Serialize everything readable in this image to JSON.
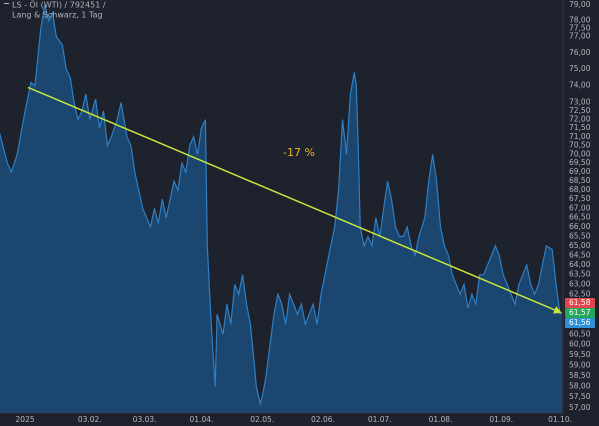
{
  "chart_data": {
    "type": "area",
    "title": "LS - Öl (WTI) / 792451 /",
    "subtitle": "Lang & Schwarz, 1 Tag",
    "annotation": "-17 %",
    "log_scale": true,
    "grid": false,
    "x": [
      -12,
      -8,
      -6,
      -3,
      1,
      4,
      6,
      9,
      11,
      13,
      15,
      17,
      20,
      22,
      24,
      26,
      28,
      30,
      32,
      34,
      37,
      39,
      41,
      43,
      45,
      48,
      50,
      53,
      55,
      57,
      59,
      61,
      63,
      65,
      67,
      69,
      71,
      73,
      75,
      77,
      79,
      81,
      83,
      85,
      87,
      89,
      91,
      93,
      94,
      96,
      98,
      99,
      102,
      104,
      106,
      108,
      110,
      112,
      114,
      116,
      118,
      119,
      121,
      122,
      124,
      126,
      128,
      130,
      132,
      134,
      136,
      138,
      140,
      142,
      144,
      146,
      148,
      150,
      152,
      155,
      157,
      159,
      161,
      163,
      165,
      167,
      169,
      170,
      171,
      172,
      174,
      176,
      178,
      180,
      182,
      184,
      186,
      188,
      190,
      192,
      194,
      196,
      198,
      200,
      202,
      205,
      207,
      209,
      211,
      213,
      215,
      217,
      219,
      221,
      223,
      225,
      227,
      229,
      231,
      233,
      235,
      237,
      239,
      241,
      243,
      245,
      247,
      249,
      251,
      253,
      255,
      257,
      259,
      261,
      263,
      265,
      267,
      270,
      272,
      274,
      275
    ],
    "series": [
      {
        "name": "LS - Öl (WTI)",
        "color": "#2f7fc4",
        "fill": "#1b4a78",
        "values": [
          71.2,
          69.5,
          69.0,
          70.0,
          72.5,
          74.2,
          74.0,
          77.5,
          79.0,
          78.0,
          78.5,
          77.0,
          76.5,
          75.0,
          74.5,
          73.0,
          72.0,
          72.5,
          73.5,
          72.0,
          73.2,
          71.5,
          72.5,
          70.5,
          71.0,
          72.0,
          73.0,
          71.0,
          70.5,
          69.0,
          68.0,
          67.0,
          66.5,
          66.0,
          67.0,
          66.2,
          67.5,
          66.5,
          67.5,
          68.5,
          68.0,
          69.5,
          69.0,
          70.5,
          71.0,
          70.0,
          71.5,
          72.0,
          65.0,
          61.0,
          58.0,
          61.5,
          60.5,
          62.0,
          61.0,
          63.0,
          62.5,
          63.5,
          62.0,
          61.0,
          59.0,
          58.0,
          57.2,
          57.5,
          58.5,
          60.0,
          61.5,
          62.5,
          62.0,
          61.0,
          62.5,
          62.0,
          61.5,
          62.0,
          61.0,
          61.5,
          62.0,
          61.0,
          62.5,
          64.0,
          65.0,
          66.0,
          68.0,
          72.0,
          70.0,
          73.5,
          74.8,
          74.0,
          70.5,
          66.0,
          65.0,
          65.5,
          65.0,
          66.5,
          65.5,
          67.0,
          68.5,
          67.5,
          66.0,
          65.5,
          65.5,
          66.0,
          65.0,
          64.5,
          65.5,
          66.5,
          68.5,
          70.0,
          68.5,
          66.0,
          65.0,
          64.5,
          63.5,
          63.0,
          62.5,
          63.0,
          61.8,
          62.5,
          62.0,
          63.5,
          63.5,
          64.0,
          64.5,
          65.0,
          64.5,
          63.5,
          63.0,
          62.5,
          62.0,
          63.0,
          63.5,
          64.0,
          63.0,
          62.5,
          63.0,
          64.0,
          65.0,
          64.8,
          63.0,
          61.5,
          61.57
        ]
      }
    ],
    "trend_line": {
      "x": [
        2.5,
        274
      ],
      "y": [
        73.9,
        61.6
      ],
      "color": "#c8e63c"
    },
    "price_labels": [
      {
        "value": 61.58,
        "label": "61,58",
        "color": "#e0474c"
      },
      {
        "value": 61.57,
        "label": "61,57",
        "color": "#26a65b"
      },
      {
        "value": 61.56,
        "label": "61,56",
        "color": "#2f8fd8"
      }
    ],
    "xlim": [
      -11.8,
      275.5
    ],
    "xticks": [
      {
        "value": 1,
        "label": "2025"
      },
      {
        "value": 34,
        "label": "03.02."
      },
      {
        "value": 62,
        "label": "03.03."
      },
      {
        "value": 91,
        "label": "01.04."
      },
      {
        "value": 122,
        "label": "02.05."
      },
      {
        "value": 153,
        "label": "02.06."
      },
      {
        "value": 182,
        "label": "01.07."
      },
      {
        "value": 213,
        "label": "01.08."
      },
      {
        "value": 244,
        "label": "01.09."
      },
      {
        "value": 274,
        "label": "01.10."
      }
    ],
    "ylim": [
      56.77,
      79.32
    ],
    "yticks": [
      {
        "value": 57,
        "label": "57,00"
      },
      {
        "value": 57.5,
        "label": "57,50"
      },
      {
        "value": 58,
        "label": "58,00"
      },
      {
        "value": 58.5,
        "label": "58,50"
      },
      {
        "value": 59,
        "label": "59,00"
      },
      {
        "value": 59.5,
        "label": "59,50"
      },
      {
        "value": 60,
        "label": "60,00"
      },
      {
        "value": 60.5,
        "label": "60,50"
      },
      {
        "value": 62.5,
        "label": "62,50"
      },
      {
        "value": 63,
        "label": "63,00"
      },
      {
        "value": 63.5,
        "label": "63,50"
      },
      {
        "value": 64,
        "label": "64,00"
      },
      {
        "value": 64.5,
        "label": "64,50"
      },
      {
        "value": 65,
        "label": "65,00"
      },
      {
        "value": 65.5,
        "label": "65,50"
      },
      {
        "value": 66,
        "label": "66,00"
      },
      {
        "value": 66.5,
        "label": "66,50"
      },
      {
        "value": 67,
        "label": "67,00"
      },
      {
        "value": 67.5,
        "label": "67,50"
      },
      {
        "value": 68,
        "label": "68,00"
      },
      {
        "value": 68.5,
        "label": "68,50"
      },
      {
        "value": 69,
        "label": "69,00"
      },
      {
        "value": 69.5,
        "label": "69,50"
      },
      {
        "value": 70,
        "label": "70,00"
      },
      {
        "value": 70.5,
        "label": "70,50"
      },
      {
        "value": 71,
        "label": "71,00"
      },
      {
        "value": 71.5,
        "label": "71,50"
      },
      {
        "value": 72,
        "label": "72,00"
      },
      {
        "value": 72.5,
        "label": "72,50"
      },
      {
        "value": 73,
        "label": "73,00"
      },
      {
        "value": 74,
        "label": "74,00"
      },
      {
        "value": 75,
        "label": "75,00"
      },
      {
        "value": 76,
        "label": "76,00"
      },
      {
        "value": 77,
        "label": "77,00"
      },
      {
        "value": 77.5,
        "label": "77,50"
      },
      {
        "value": 78,
        "label": "78,00"
      },
      {
        "value": 79,
        "label": "79,00"
      }
    ]
  }
}
